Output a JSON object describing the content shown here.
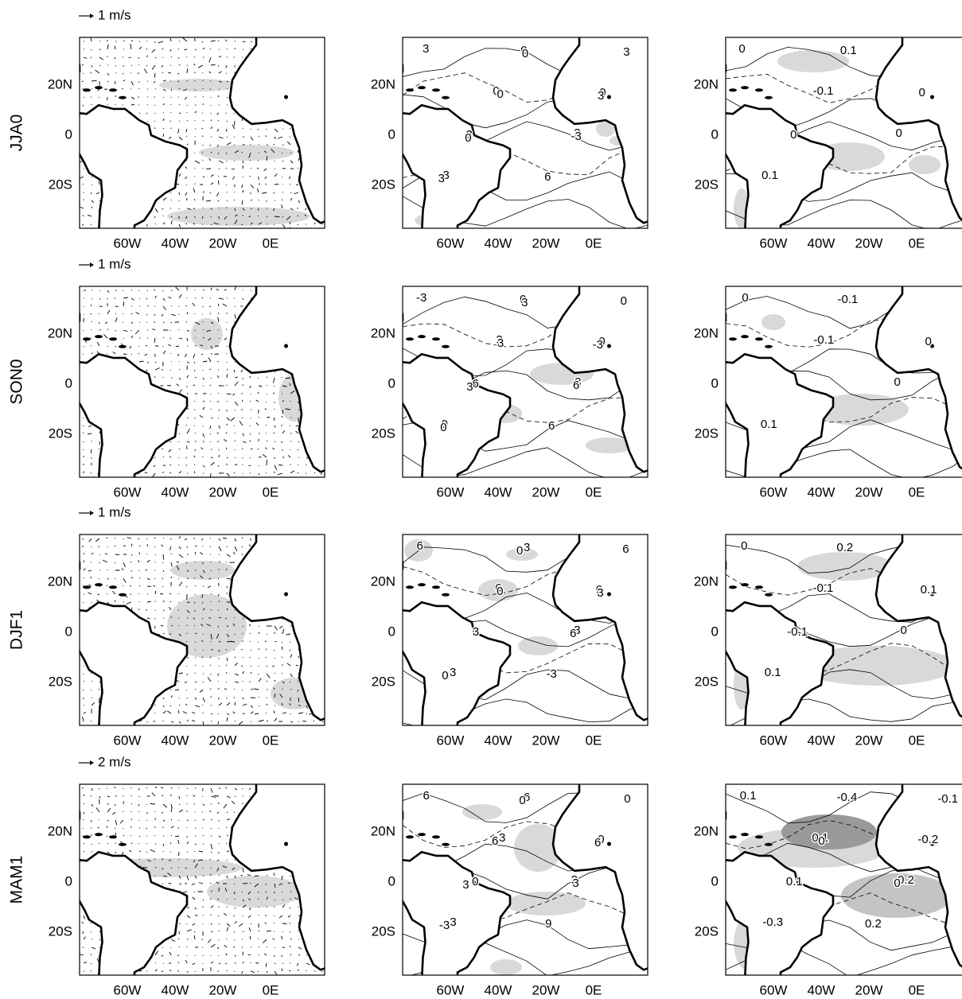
{
  "rows": [
    {
      "season": "JJA0",
      "vector_scale": "1 m/s",
      "panels": [
        {
          "contour_labels": []
        },
        {
          "contour_labels": [
            "3",
            "0",
            "3",
            "3",
            "0",
            "0",
            "3",
            "6",
            "3",
            "0",
            "-3",
            "3",
            "0",
            "3",
            "0"
          ]
        },
        {
          "contour_labels": [
            "0",
            "-0.1",
            "0",
            "0.1",
            "0.1",
            "0",
            "0"
          ]
        }
      ]
    },
    {
      "season": "SON0",
      "vector_scale": "1 m/s",
      "panels": [
        {
          "contour_labels": []
        },
        {
          "contour_labels": [
            "-3",
            "3",
            "3",
            "0",
            "0",
            "0",
            "6",
            "6",
            "0",
            "3",
            "6",
            "0",
            "3",
            "-3",
            "3"
          ]
        },
        {
          "contour_labels": [
            "0",
            "-0.1",
            "0",
            "0.1",
            "-0.1",
            "0"
          ]
        }
      ]
    },
    {
      "season": "DJF1",
      "vector_scale": "1 m/s",
      "panels": [
        {
          "contour_labels": []
        },
        {
          "contour_labels": [
            "6",
            "6",
            "3",
            "-3",
            "3",
            "6",
            "3",
            "-3",
            "6",
            "0",
            "6",
            "0",
            "0",
            "3"
          ]
        },
        {
          "contour_labels": [
            "0",
            "-0.1",
            "0",
            "0.1",
            "0.2",
            "0.1",
            "-0.1"
          ]
        }
      ]
    },
    {
      "season": "MAM1",
      "vector_scale": "2 m/s",
      "panels": [
        {
          "contour_labels": []
        },
        {
          "contour_labels": [
            "6",
            "3",
            "3",
            "-3",
            "6",
            "0",
            "0",
            "9",
            "0",
            "6",
            "3",
            "-3",
            "0",
            "6",
            "3"
          ]
        },
        {
          "contour_labels": [
            "0.1",
            "0.1",
            "-0.2",
            "-0.3",
            "-0.4",
            "-0.2",
            "0.1",
            "0.2",
            "-0.1",
            "0",
            "0"
          ]
        }
      ]
    }
  ],
  "lat_ticks": [
    "20N",
    "0",
    "20S"
  ],
  "lon_ticks": [
    "60W",
    "40W",
    "20W",
    "0E"
  ]
}
